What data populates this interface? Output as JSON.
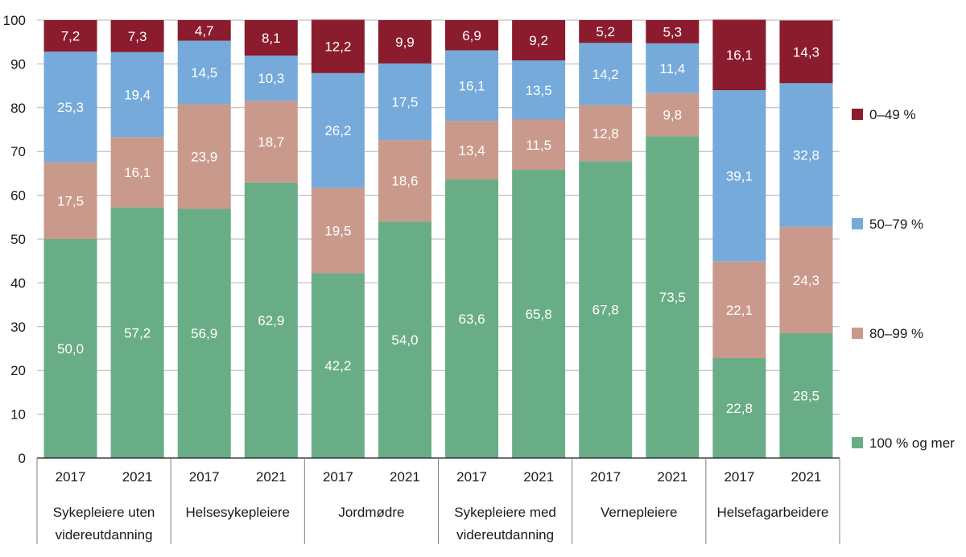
{
  "chart_data": {
    "type": "bar",
    "stacked": true,
    "ylim": [
      0,
      100
    ],
    "yticks": [
      0,
      10,
      20,
      30,
      40,
      50,
      60,
      70,
      80,
      90,
      100
    ],
    "grid": true,
    "legend_position": "right",
    "groups": [
      {
        "name": "Sykepleiere uten videreutdanning",
        "lines": [
          "Sykepleiere uten",
          "videreutdanning"
        ],
        "years": [
          "2017",
          "2021"
        ]
      },
      {
        "name": "Helsesykepleiere",
        "lines": [
          "Helsesykepleiere"
        ],
        "years": [
          "2017",
          "2021"
        ]
      },
      {
        "name": "Jordmødre",
        "lines": [
          "Jordmødre"
        ],
        "years": [
          "2017",
          "2021"
        ]
      },
      {
        "name": "Sykepleiere med videreutdanning",
        "lines": [
          "Sykepleiere med",
          "videreutdanning"
        ],
        "years": [
          "2017",
          "2021"
        ]
      },
      {
        "name": "Vernepleiere",
        "lines": [
          "Vernepleiere"
        ],
        "years": [
          "2017",
          "2021"
        ]
      },
      {
        "name": "Helsefagarbeidere",
        "lines": [
          "Helsefagarbeidere"
        ],
        "years": [
          "2017",
          "2021"
        ]
      }
    ],
    "series": [
      {
        "name": "100 % og mer",
        "color": "#69ad86",
        "values": [
          50.0,
          57.2,
          56.9,
          62.9,
          42.2,
          54.0,
          63.6,
          65.8,
          67.8,
          73.5,
          22.8,
          28.5
        ],
        "labels": [
          "50,0",
          "57,2",
          "56,9",
          "62,9",
          "42,2",
          "54,0",
          "63,6",
          "65,8",
          "67,8",
          "73,5",
          "22,8",
          "28,5"
        ]
      },
      {
        "name": "80–99 %",
        "color": "#c99a8c",
        "values": [
          17.5,
          16.1,
          23.9,
          18.7,
          19.5,
          18.6,
          13.4,
          11.5,
          12.8,
          9.8,
          22.1,
          24.3
        ],
        "labels": [
          "17,5",
          "16,1",
          "23,9",
          "18,7",
          "19,5",
          "18,6",
          "13,4",
          "11,5",
          "12,8",
          "9,8",
          "22,1",
          "24,3"
        ]
      },
      {
        "name": "50–79 %",
        "color": "#76aadb",
        "values": [
          25.3,
          19.4,
          14.5,
          10.3,
          26.2,
          17.5,
          16.1,
          13.5,
          14.2,
          11.4,
          39.1,
          32.8
        ],
        "labels": [
          "25,3",
          "19,4",
          "14,5",
          "10,3",
          "26,2",
          "17,5",
          "16,1",
          "13,5",
          "14,2",
          "11,4",
          "39,1",
          "32,8"
        ]
      },
      {
        "name": "0–49 %",
        "color": "#8a1c2e",
        "values": [
          7.2,
          7.3,
          4.7,
          8.1,
          12.2,
          9.9,
          6.9,
          9.2,
          5.2,
          5.3,
          16.1,
          14.3
        ],
        "labels": [
          "7,2",
          "7,3",
          "4,7",
          "8,1",
          "12,2",
          "9,9",
          "6,9",
          "9,2",
          "5,2",
          "5,3",
          "16,1",
          "14,3"
        ]
      }
    ],
    "legend_order": [
      "0–49 %",
      "50–79 %",
      "80–99 %",
      "100 % og mer"
    ]
  }
}
